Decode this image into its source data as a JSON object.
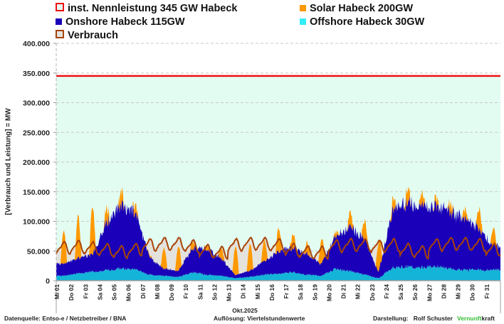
{
  "colors": {
    "capacity": "#ee1111",
    "solar": "#ff9900",
    "onshore": "#1a00b8",
    "offshore": "#14b4d8",
    "consumption": "#a84408",
    "plot_bg": "#e2fcf2",
    "deficit": "#e4e2dc",
    "vernunft_green": "#33bb33"
  },
  "legend": [
    {
      "label": "inst. Nennleistung 345 GW Habeck",
      "icon": "hollow-square",
      "color_key": "capacity"
    },
    {
      "label": "Solar Habeck 200GW",
      "icon": "filled-square",
      "color_key": "solar"
    },
    {
      "label": "Onshore Habeck 115GW",
      "icon": "filled-square",
      "color_key": "onshore"
    },
    {
      "label": "Offshore Habeck 30GW",
      "icon": "filled-square",
      "color_key": "offshore"
    },
    {
      "label": "Verbrauch",
      "icon": "hollow-square",
      "color_key": "consumption"
    }
  ],
  "footer": {
    "source": "Datenquelle: Entso-e  / Netzbetreiber / BNA",
    "resolution": "Auflösung: Viertelstundenwerte",
    "author_prefix": "Darstellung:",
    "author": "Rolf Schuster",
    "brand_green": "Vernunft",
    "brand_black": "kraft"
  },
  "chart_data": {
    "type": "area",
    "title": "",
    "xlabel": "Okt.2025",
    "ylabel": "[Verbrauch und Leistung] = MW",
    "ylim": [
      0,
      400000
    ],
    "yticks": [
      0,
      50000,
      100000,
      150000,
      200000,
      250000,
      300000,
      350000,
      400000
    ],
    "ytick_labels": [
      "0",
      "50.000",
      "100.000",
      "150.000",
      "200.000",
      "250.000",
      "300.000",
      "350.000",
      "400.000"
    ],
    "grid": true,
    "stacked": true,
    "categories": [
      "Mi 01",
      "Do 02",
      "Fr 03",
      "Sa 04",
      "So 05",
      "Mo 06",
      "Di 07",
      "Mi 08",
      "Do 09",
      "Fr 10",
      "Sa 11",
      "So 12",
      "Mo 13",
      "Di 14",
      "Mi 15",
      "Do 16",
      "Fr 17",
      "Sa 18",
      "So 19",
      "Mo 20",
      "Di 21",
      "Mi 22",
      "Do 23",
      "Fr 24",
      "Sa 25",
      "So 26",
      "Mo 27",
      "Di 28",
      "Mi 29",
      "Do 30",
      "Fr 31"
    ],
    "capacity_line": {
      "name": "inst. Nennleistung 345 GW Habeck",
      "value": 345000
    },
    "series": [
      {
        "name": "Offshore Habeck 30GW",
        "key": "offshore",
        "daily_values": [
          8000,
          12000,
          15000,
          17000,
          20000,
          18000,
          10000,
          8000,
          6000,
          14000,
          10000,
          8000,
          4000,
          6000,
          10000,
          12000,
          14000,
          10000,
          8000,
          20000,
          16000,
          10000,
          4000,
          22000,
          24000,
          22000,
          24000,
          20000,
          18000,
          18000,
          18000
        ]
      },
      {
        "name": "Onshore Habeck 115GW",
        "key": "onshore",
        "daily_values": [
          20000,
          25000,
          28000,
          80000,
          105000,
          95000,
          30000,
          12000,
          10000,
          40000,
          45000,
          30000,
          5000,
          10000,
          22000,
          38000,
          40000,
          35000,
          20000,
          55000,
          75000,
          60000,
          10000,
          100000,
          110000,
          105000,
          100000,
          95000,
          85000,
          70000,
          40000
        ]
      },
      {
        "name": "Solar Habeck 200GW",
        "key": "solar",
        "daily_values": [
          35000,
          45000,
          50000,
          15000,
          15000,
          10000,
          2000,
          22000,
          25000,
          8000,
          5000,
          12000,
          30000,
          28000,
          22000,
          25000,
          15000,
          12000,
          25000,
          5000,
          15000,
          20000,
          30000,
          12000,
          15000,
          12000,
          8000,
          10000,
          10000,
          22000,
          18000
        ]
      },
      {
        "name": "Verbrauch",
        "key": "consumption",
        "type": "line",
        "daily_values": [
          55000,
          57000,
          55000,
          52000,
          48000,
          52000,
          60000,
          62000,
          62000,
          58000,
          50000,
          47000,
          60000,
          62000,
          62000,
          60000,
          52000,
          48000,
          47000,
          58000,
          60000,
          60000,
          58000,
          60000,
          52000,
          48000,
          60000,
          62000,
          62000,
          60000,
          52000
        ]
      }
    ]
  }
}
